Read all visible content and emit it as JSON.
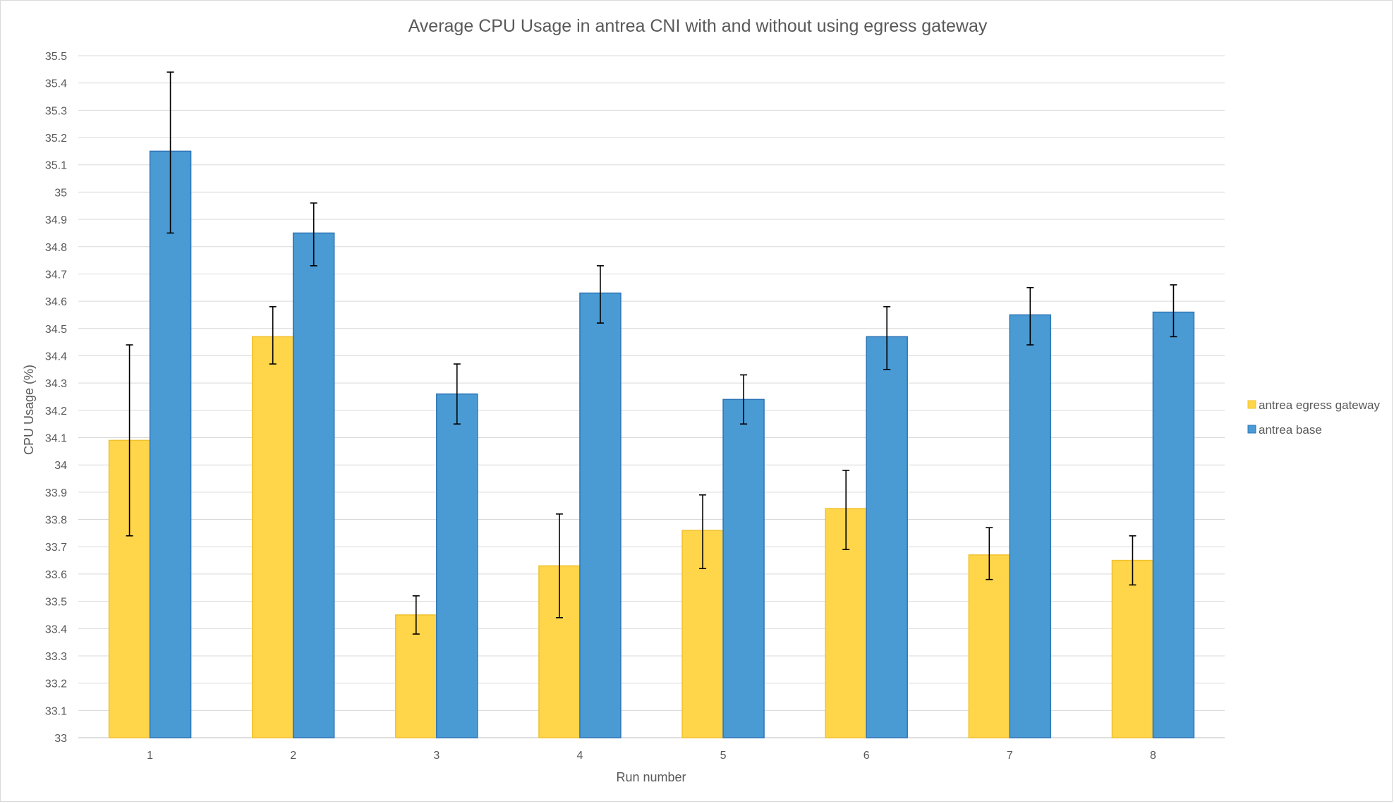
{
  "chart_data": {
    "type": "bar",
    "title": "Average CPU Usage in antrea CNI with and without using egress gateway",
    "xlabel": "Run number",
    "ylabel": "CPU Usage (%)",
    "ylim": [
      33,
      35.5
    ],
    "ytick_step": 0.1,
    "yticks": [
      "33",
      "33.1",
      "33.2",
      "33.3",
      "33.4",
      "33.5",
      "33.6",
      "33.7",
      "33.8",
      "33.9",
      "34",
      "34.1",
      "34.2",
      "34.3",
      "34.4",
      "34.5",
      "34.6",
      "34.7",
      "34.8",
      "34.9",
      "35",
      "35.1",
      "35.2",
      "35.3",
      "35.4",
      "35.5"
    ],
    "categories": [
      "1",
      "2",
      "3",
      "4",
      "5",
      "6",
      "7",
      "8"
    ],
    "grid": true,
    "legend_position": "right",
    "series": [
      {
        "name": "antrea egress gateway",
        "color": "#ffd54a",
        "border": "#f2c12e",
        "values": [
          34.09,
          34.47,
          33.45,
          33.63,
          33.76,
          33.84,
          33.67,
          33.65
        ],
        "err_low": [
          33.74,
          34.37,
          33.38,
          33.44,
          33.62,
          33.69,
          33.58,
          33.56
        ],
        "err_high": [
          34.44,
          34.58,
          33.52,
          33.82,
          33.89,
          33.98,
          33.77,
          33.74
        ]
      },
      {
        "name": "antrea base",
        "color": "#4a9ad4",
        "border": "#2e75b6",
        "values": [
          35.15,
          34.85,
          34.26,
          34.63,
          34.24,
          34.47,
          34.55,
          34.56
        ],
        "err_low": [
          34.85,
          34.73,
          34.15,
          34.52,
          34.15,
          34.35,
          34.44,
          34.47
        ],
        "err_high": [
          35.44,
          34.96,
          34.37,
          34.73,
          34.33,
          34.58,
          34.65,
          34.66
        ]
      }
    ]
  }
}
